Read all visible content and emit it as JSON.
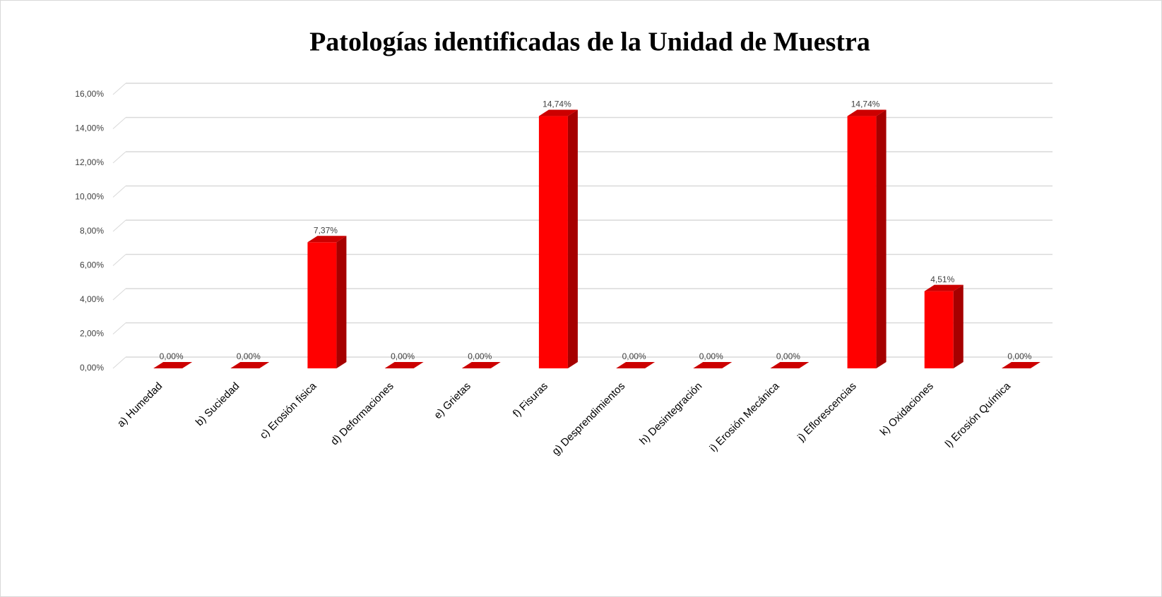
{
  "chart_data": {
    "type": "bar3d",
    "title": "Patologías identificadas de la Unidad  de Muestra",
    "categories": [
      "a) Humedad",
      "b) Suciedad",
      "c) Erosión fisica",
      "d) Deformaciones",
      "e) Grietas",
      "f) Fisuras",
      "g) Desprendimientos",
      "h) Desintegración",
      "i) Erosión Mecánica",
      "j) Eflorescencias",
      "k) Oxidaciones",
      "l) Erosión Química"
    ],
    "values": [
      0,
      0,
      7.37,
      0,
      0,
      14.74,
      0,
      0,
      0,
      14.74,
      4.51,
      0
    ],
    "value_labels": [
      "0,00%",
      "0,00%",
      "7,37%",
      "0,00%",
      "0,00%",
      "14,74%",
      "0,00%",
      "0,00%",
      "0,00%",
      "14,74%",
      "4,51%",
      "0,00%"
    ],
    "color": "#ff0000",
    "ylim": [
      0,
      16
    ],
    "yticks": [
      {
        "value": 0,
        "label": "0,00%"
      },
      {
        "value": 2,
        "label": "2,00%"
      },
      {
        "value": 4,
        "label": "4,00%"
      },
      {
        "value": 6,
        "label": "6,00%"
      },
      {
        "value": 8,
        "label": "8,00%"
      },
      {
        "value": 10,
        "label": "10,00%"
      },
      {
        "value": 12,
        "label": "12,00%"
      },
      {
        "value": 14,
        "label": "14,00%"
      },
      {
        "value": 16,
        "label": "16,00%"
      }
    ],
    "grid": true
  }
}
